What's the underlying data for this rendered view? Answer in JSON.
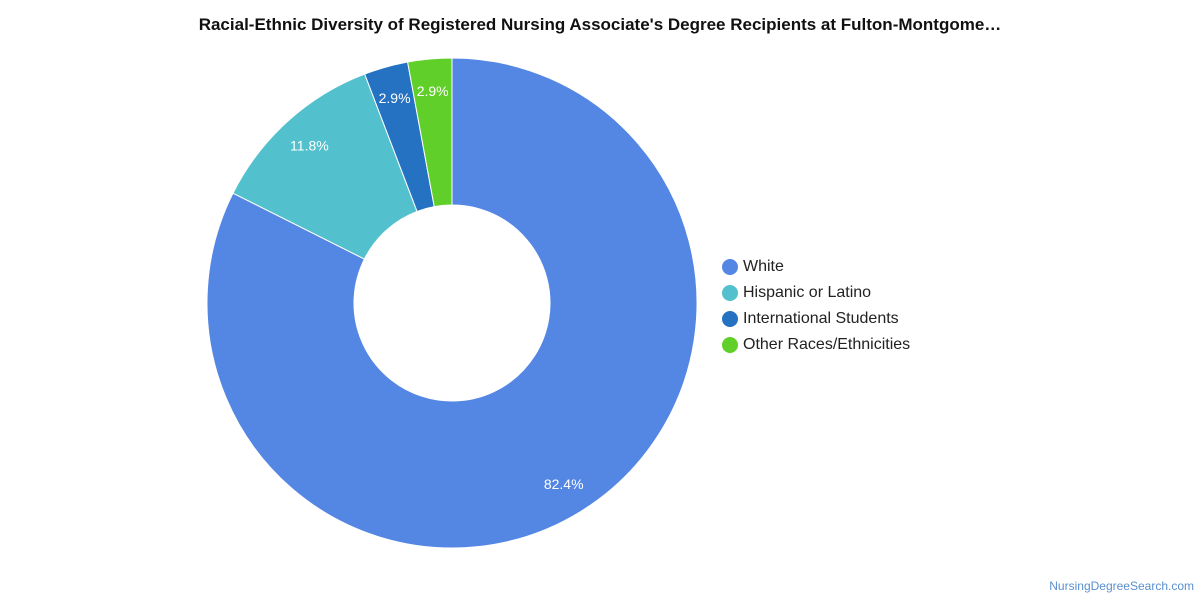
{
  "chart_data": {
    "type": "pie",
    "title": "Racial-Ethnic Diversity of Registered Nursing Associate's Degree Recipients at Fulton-Montgome…",
    "categories": [
      "White",
      "Hispanic or Latino",
      "International Students",
      "Other Races/Ethnicities"
    ],
    "values": [
      82.4,
      11.8,
      2.9,
      2.9
    ],
    "value_labels": [
      "82.4%",
      "11.8%",
      "2.9%",
      "2.9%"
    ],
    "colors": [
      "#5486e3",
      "#52c1cd",
      "#2571c2",
      "#61cf2a"
    ],
    "donut": true,
    "legend_position": "right"
  },
  "footer": {
    "source": "NursingDegreeSearch.com"
  }
}
